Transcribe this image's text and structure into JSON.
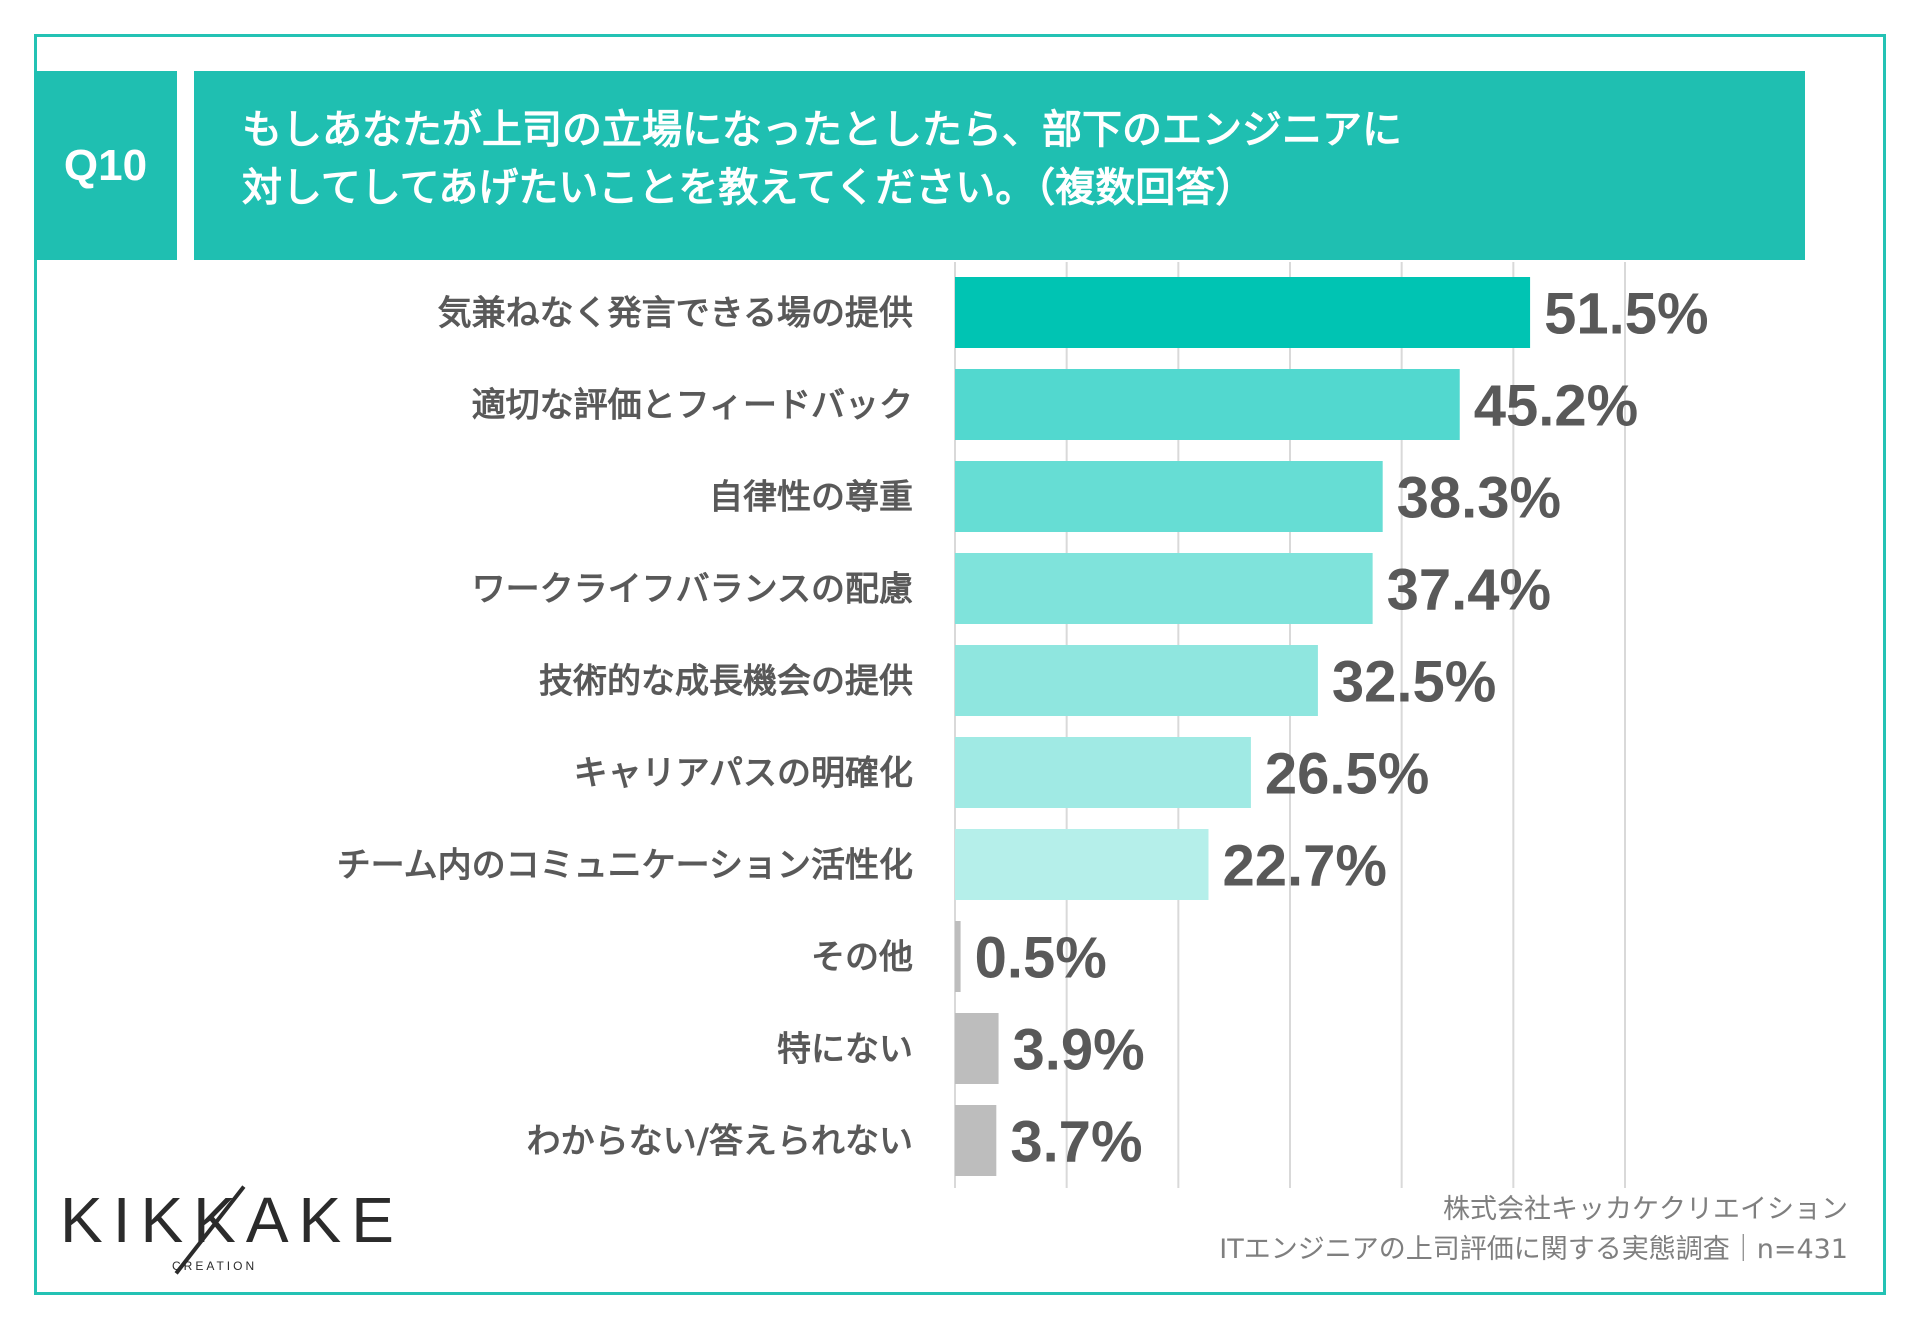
{
  "question": {
    "number": "Q10",
    "line1": "もしあなたが上司の立場になったとしたら、部下のエンジニアに",
    "line2": "対してしてあげたいことを教えてください。（複数回答）"
  },
  "chart_data": {
    "type": "bar",
    "orientation": "horizontal",
    "categories": [
      "気兼ねなく発言できる場の提供",
      "適切な評価とフィードバック",
      "自律性の尊重",
      "ワークライフバランスの配慮",
      "技術的な成長機会の提供",
      "キャリアパスの明確化",
      "チーム内のコミュニケーション活性化",
      "その他",
      "特にない",
      "わからない/答えられない"
    ],
    "values": [
      51.5,
      45.2,
      38.3,
      37.4,
      32.5,
      26.5,
      22.7,
      0.5,
      3.9,
      3.7
    ],
    "value_labels": [
      "51.5%",
      "45.2%",
      "38.3%",
      "37.4%",
      "32.5%",
      "26.5%",
      "22.7%",
      "0.5%",
      "3.9%",
      "3.7%"
    ],
    "colors": [
      "#00c4b3",
      "#52d8cf",
      "#66ddd4",
      "#7fe3db",
      "#8fe6df",
      "#a0eae4",
      "#b5efea",
      "#bdbdbd",
      "#bdbdbd",
      "#bdbdbd"
    ],
    "xlim": [
      0,
      60
    ],
    "gridlines": [
      0,
      10,
      20,
      30,
      40,
      50,
      60
    ],
    "grid": true
  },
  "logo": {
    "name": "KIKKAKE",
    "sub": "CREATION"
  },
  "source": {
    "line1": "株式会社キッカケクリエイション",
    "line2": "ITエンジニアの上司評価に関する実態調査｜n=431"
  }
}
